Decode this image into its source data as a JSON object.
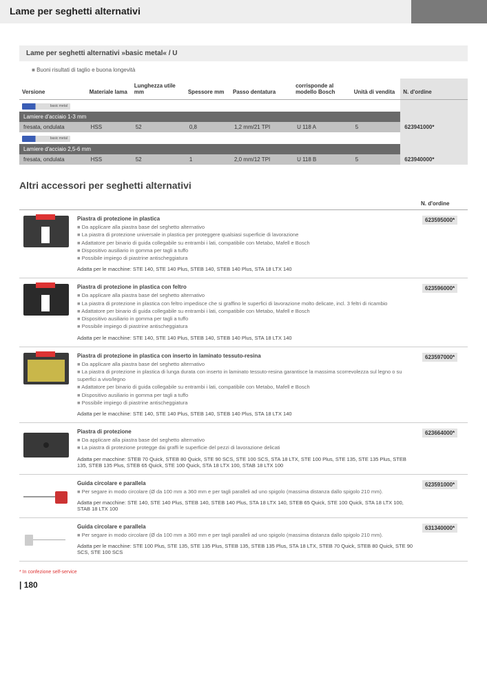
{
  "page": {
    "title": "Lame per seghetti alternativi",
    "number": "180",
    "footnote": "* In confezione self-service"
  },
  "section1": {
    "header": "Lame per seghetti alternativi »basic metal« / U",
    "feature": "Buoni risultati di taglio e buona longevità",
    "columns": {
      "versione": "Versione",
      "materiale": "Materiale lama",
      "lunghezza": "Lunghezza utile mm",
      "spessore": "Spessore mm",
      "passo": "Passo dentatura",
      "bosch": "corrisponde al modello Bosch",
      "unita": "Unità di vendita",
      "ordine": "N. d'ordine"
    },
    "rows": [
      {
        "cat": "Lamiere d'acciaio 1-3 mm",
        "versione": "fresata, ondulata",
        "materiale": "HSS",
        "lunghezza": "52",
        "spessore": "0,8",
        "passo": "1,2 mm/21 TPI",
        "bosch": "U 118 A",
        "unita": "5",
        "ordine": "623941000*"
      },
      {
        "cat": "Lamiere d'acciaio 2,5-6 mm",
        "versione": "fresata, ondulata",
        "materiale": "HSS",
        "lunghezza": "52",
        "spessore": "1",
        "passo": "2,0 mm/12 TPI",
        "bosch": "U 118 B",
        "unita": "5",
        "ordine": "623940000*"
      }
    ]
  },
  "section2": {
    "title": "Altri accessori per seghetti alternativi",
    "ordine_label": "N. d'ordine",
    "items": [
      {
        "thumb": "base",
        "title": "Piastra di protezione in plastica",
        "bullets": [
          "Da applicare alla piastra base del seghetto alternativo",
          "La piastra di protezione universale in plastica per proteggere qualsiasi superficie di lavorazione",
          "Adattatore per binario di guida collegabile su entrambi i lati, compatibile con Metabo, Mafell e Bosch",
          "Dispositivo ausiliario in gomma per tagli a tuffo",
          "Possibile impiego di piastrine antischeggiatura"
        ],
        "fit": "Adatta per le macchine: STE 140, STE 140 Plus, STEB 140, STEB 140 Plus, STA 18 LTX 140",
        "ordine": "623595000*"
      },
      {
        "thumb": "felt",
        "title": "Piastra di protezione in plastica con feltro",
        "bullets": [
          "Da applicare alla piastra base del seghetto alternativo",
          "La piastra di protezione in plastica con feltro impedisce che si graffino le superfici di lavorazione molto delicate, incl. 3 feltri di ricambio",
          "Adattatore per binario di guida collegabile su entrambi i lati, compatibile con Metabo, Mafell e Bosch",
          "Dispositivo ausiliario in gomma per tagli a tuffo",
          "Possibile impiego di piastrine antischeggiatura"
        ],
        "fit": "Adatta per le macchine: STE 140, STE 140 Plus, STEB 140, STEB 140 Plus, STA 18 LTX 140",
        "ordine": "623596000*"
      },
      {
        "thumb": "resin",
        "title": "Piastra di protezione in plastica con inserto in laminato tessuto-resina",
        "bullets": [
          "Da applicare alla piastra base del seghetto alternativo",
          "La piastra di protezione in plastica di lunga durata con inserto in laminato tessuto-resina garantisce la massima scorrevolezza sul legno o su superfici a vivo/legno",
          "Adattatore per binario di guida collegabile su entrambi i lati, compatibile con Metabo, Mafell e Bosch",
          "Dispositivo ausiliario in gomma per tagli a tuffo",
          "Possibile impiego di piastrine antischeggiatura"
        ],
        "fit": "Adatta per le macchine: STE 140, STE 140 Plus, STEB 140, STEB 140 Plus, STA 18 LTX 140",
        "ordine": "623597000*"
      },
      {
        "thumb": "plate",
        "title": "Piastra di protezione",
        "bullets": [
          "Da applicare alla piastra base del seghetto alternativo",
          "La piastra di protezione protegge dai graffi le superficie del pezzi di lavorazione delicati"
        ],
        "fit": "Adatta per macchine: STEB 70 Quick, STEB 80 Quick, STE 90 SCS, STE 100 SCS, STA 18 LTX, STE 100 Plus, STE 135, STE 135 Plus, STEB 135, STEB 135 Plus, STEB 65 Quick, STE 100 Quick, STA 18 LTX 100, STAB 18 LTX 100",
        "ordine": "623664000*"
      },
      {
        "thumb": "guide",
        "title": "Guida circolare e parallela",
        "bullets": [
          "Per segare in modo circolare (Ø da 100 mm a 360 mm e per tagli paralleli ad uno spigolo (massima distanza dallo spigolo 210 mm)."
        ],
        "fit": "Adatta per macchine: STE 140, STE 140 Plus, STEB 140, STEB 140 Plus, STA 18 LTX 140, STEB 65 Quick, STE 100 Quick, STA 18 LTX 100, STAB 18 LTX 100",
        "ordine": "623591000*"
      },
      {
        "thumb": "guide2",
        "title": "Guida circolare e parallela",
        "bullets": [
          "Per segare in modo circolare (Ø da 100 mm a 360 mm e per tagli paralleli ad uno spigolo (massima distanza dallo spigolo 210 mm)."
        ],
        "fit": "Adatta per le macchine: STE 100 Plus, STE 135, STE 135 Plus, STEB 135, STEB 135 Plus, STA 18 LTX, STEB 70 Quick, STEB 80 Quick, STE 90 SCS, STE 100 SCS",
        "ordine": "631340000*"
      }
    ]
  },
  "colors": {
    "accent": "#7a7a7a",
    "header_bg": "#eeeeee",
    "cat_bg": "#6a6a6a",
    "data_bg": "#c2c2c2",
    "ord_bg": "#e3e3e3",
    "red": "#d33"
  }
}
